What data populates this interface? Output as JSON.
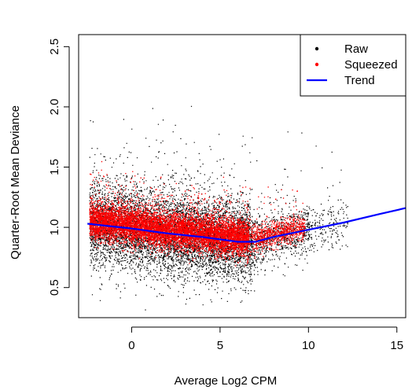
{
  "chart_data": {
    "type": "scatter",
    "title": "",
    "xlabel": "Average Log2 CPM",
    "ylabel": "Quarter-Root Mean Deviance",
    "xlim": [
      -3,
      15.5
    ],
    "ylim": [
      0.25,
      2.6
    ],
    "x_ticks": [
      0,
      5,
      10,
      15
    ],
    "y_ticks": [
      0.5,
      1.0,
      1.5,
      2.0,
      2.5
    ],
    "x_tick_labels": [
      "0",
      "5",
      "10",
      "15"
    ],
    "y_tick_labels": [
      "0.5",
      "1.0",
      "1.5",
      "2.0",
      "2.5"
    ],
    "legend_position": "top-right",
    "grid": false,
    "series": [
      {
        "name": "Raw",
        "kind": "points",
        "color": "#000000",
        "note": "dense cloud of gene-wise raw dispersions, x about -2.5 to 12, y about 0.3 to 2.4"
      },
      {
        "name": "Squeezed",
        "kind": "points",
        "color": "#ff0000",
        "note": "dense band of squeezed dispersions, x about -2.5 to 10, y about 0.8 to 1.5"
      },
      {
        "name": "Trend",
        "kind": "line",
        "color": "#0000ff",
        "x": [
          -2.5,
          0,
          2,
          4,
          6,
          7,
          8,
          10,
          12,
          14,
          15.5
        ],
        "y": [
          1.03,
          0.99,
          0.95,
          0.92,
          0.88,
          0.88,
          0.92,
          0.98,
          1.04,
          1.11,
          1.16
        ]
      }
    ]
  }
}
